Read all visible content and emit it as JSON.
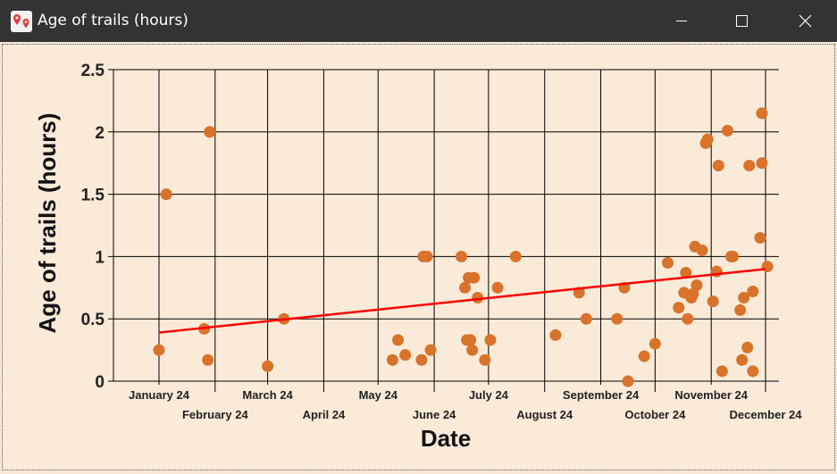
{
  "window": {
    "title": "Age of trails (hours)",
    "icon": "map-pin-icon",
    "minimize_icon": "minimize-icon",
    "maximize_icon": "maximize-icon",
    "close_icon": "close-icon"
  },
  "colors": {
    "background": "#faead8",
    "point": "#d9722a",
    "trend": "#ff0000",
    "grid": "#000000"
  },
  "chart_data": {
    "type": "scatter",
    "title": "",
    "xlabel": "Date",
    "ylabel": "Age of trails (hours)",
    "ylim": [
      0,
      2.5
    ],
    "yticks": [
      "0",
      "0.5",
      "1",
      "1.5",
      "2",
      "2.5"
    ],
    "xlim": [
      "2024-01-01",
      "2024-12-01"
    ],
    "xticks": [
      {
        "date": "2024-01-01",
        "label": "January 24"
      },
      {
        "date": "2024-02-01",
        "label": "February 24"
      },
      {
        "date": "2024-03-01",
        "label": "March 24"
      },
      {
        "date": "2024-04-01",
        "label": "April 24"
      },
      {
        "date": "2024-05-01",
        "label": "May 24"
      },
      {
        "date": "2024-06-01",
        "label": "June 24"
      },
      {
        "date": "2024-07-01",
        "label": "July 24"
      },
      {
        "date": "2024-08-01",
        "label": "August 24"
      },
      {
        "date": "2024-09-01",
        "label": "September 24"
      },
      {
        "date": "2024-10-01",
        "label": "October 24"
      },
      {
        "date": "2024-11-01",
        "label": "November 24"
      },
      {
        "date": "2024-12-01",
        "label": "December 24"
      }
    ],
    "grid": true,
    "trendline": {
      "start": {
        "x": "2024-01-01",
        "y": 0.39
      },
      "end": {
        "x": "2024-12-01",
        "y": 0.9
      }
    },
    "points": [
      {
        "x": "2024-01-01",
        "y": 0.25
      },
      {
        "x": "2024-01-05",
        "y": 1.5
      },
      {
        "x": "2024-01-26",
        "y": 0.42
      },
      {
        "x": "2024-01-28",
        "y": 0.17
      },
      {
        "x": "2024-01-29",
        "y": 2.0
      },
      {
        "x": "2024-03-01",
        "y": 0.12
      },
      {
        "x": "2024-03-10",
        "y": 0.5
      },
      {
        "x": "2024-05-09",
        "y": 0.17
      },
      {
        "x": "2024-05-12",
        "y": 0.33
      },
      {
        "x": "2024-05-16",
        "y": 0.21
      },
      {
        "x": "2024-05-25",
        "y": 0.17
      },
      {
        "x": "2024-05-26",
        "y": 1.0
      },
      {
        "x": "2024-05-28",
        "y": 1.0
      },
      {
        "x": "2024-05-30",
        "y": 0.25
      },
      {
        "x": "2024-06-16",
        "y": 1.0
      },
      {
        "x": "2024-06-18",
        "y": 0.75
      },
      {
        "x": "2024-06-19",
        "y": 0.33
      },
      {
        "x": "2024-06-20",
        "y": 0.83
      },
      {
        "x": "2024-06-21",
        "y": 0.33
      },
      {
        "x": "2024-06-22",
        "y": 0.25
      },
      {
        "x": "2024-06-23",
        "y": 0.83
      },
      {
        "x": "2024-06-25",
        "y": 0.67
      },
      {
        "x": "2024-06-29",
        "y": 0.17
      },
      {
        "x": "2024-07-02",
        "y": 0.33
      },
      {
        "x": "2024-07-06",
        "y": 0.75
      },
      {
        "x": "2024-07-16",
        "y": 1.0
      },
      {
        "x": "2024-08-07",
        "y": 0.37
      },
      {
        "x": "2024-08-20",
        "y": 0.71
      },
      {
        "x": "2024-08-24",
        "y": 0.5
      },
      {
        "x": "2024-09-10",
        "y": 0.5
      },
      {
        "x": "2024-09-14",
        "y": 0.75
      },
      {
        "x": "2024-09-16",
        "y": 0.0
      },
      {
        "x": "2024-09-25",
        "y": 0.2
      },
      {
        "x": "2024-10-01",
        "y": 0.3
      },
      {
        "x": "2024-10-08",
        "y": 0.95
      },
      {
        "x": "2024-10-14",
        "y": 0.59
      },
      {
        "x": "2024-10-17",
        "y": 0.71
      },
      {
        "x": "2024-10-18",
        "y": 0.87
      },
      {
        "x": "2024-10-19",
        "y": 0.5
      },
      {
        "x": "2024-10-21",
        "y": 0.67
      },
      {
        "x": "2024-10-22",
        "y": 0.7
      },
      {
        "x": "2024-10-23",
        "y": 1.08
      },
      {
        "x": "2024-10-24",
        "y": 0.77
      },
      {
        "x": "2024-10-27",
        "y": 1.05
      },
      {
        "x": "2024-10-29",
        "y": 1.91
      },
      {
        "x": "2024-10-30",
        "y": 1.94
      },
      {
        "x": "2024-11-02",
        "y": 0.64
      },
      {
        "x": "2024-11-04",
        "y": 0.88
      },
      {
        "x": "2024-11-05",
        "y": 1.73
      },
      {
        "x": "2024-11-07",
        "y": 0.08
      },
      {
        "x": "2024-11-10",
        "y": 2.01
      },
      {
        "x": "2024-11-12",
        "y": 1.0
      },
      {
        "x": "2024-11-13",
        "y": 1.0
      },
      {
        "x": "2024-11-17",
        "y": 0.57
      },
      {
        "x": "2024-11-18",
        "y": 0.17
      },
      {
        "x": "2024-11-19",
        "y": 0.67
      },
      {
        "x": "2024-11-21",
        "y": 0.27
      },
      {
        "x": "2024-11-22",
        "y": 1.73
      },
      {
        "x": "2024-11-24",
        "y": 0.72
      },
      {
        "x": "2024-11-24",
        "y": 0.08
      },
      {
        "x": "2024-11-28",
        "y": 1.15
      },
      {
        "x": "2024-11-29",
        "y": 2.15
      },
      {
        "x": "2024-11-29",
        "y": 1.75
      },
      {
        "x": "2024-12-02",
        "y": 0.92
      }
    ]
  }
}
